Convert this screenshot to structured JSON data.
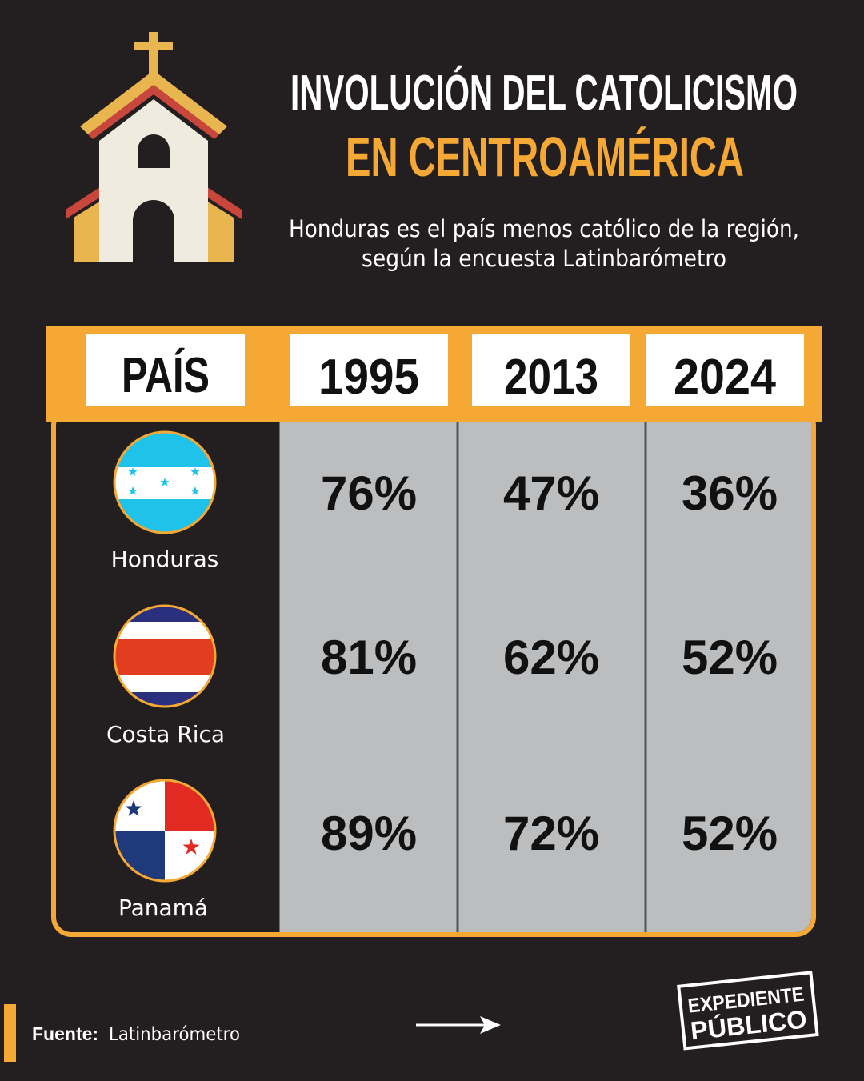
{
  "header": {
    "title_line1": "INVOLUCIÓN DEL CATOLICISMO",
    "title_line2": "EN CENTROAMÉRICA",
    "subtitle_line1": "Honduras es el país menos católico de la región,",
    "subtitle_line2": "según la encuesta Latinbarómetro"
  },
  "table": {
    "headers": [
      "PAÍS",
      "1995",
      "2013",
      "2024"
    ],
    "rows": [
      [
        "Honduras",
        "76%",
        "47%",
        "36%"
      ],
      [
        "Costa Rica",
        "81%",
        "62%",
        "52%"
      ],
      [
        "Panamá",
        "89%",
        "72%",
        "52%"
      ]
    ]
  },
  "footer": {
    "source_label": "Fuente:",
    "source": "Latinbarómetro",
    "logo_line1": "EXPEDIENTE",
    "logo_line2": "PÚBLICO"
  }
}
